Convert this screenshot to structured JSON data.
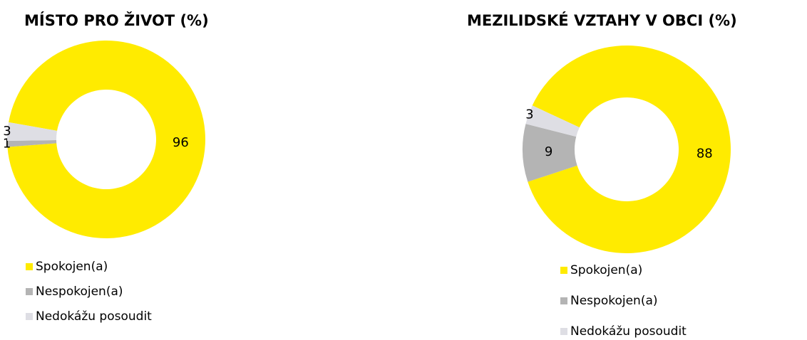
{
  "chart_data": [
    {
      "type": "donut",
      "title": "MÍSTO PRO ŽIVOT (%)",
      "categories": [
        "Spokojen(a)",
        "Nespokojen(a)",
        "Nedokážu posoudit"
      ],
      "values": [
        96,
        1,
        3
      ],
      "colors": [
        "#ffeb00",
        "#b4b4b4",
        "#dedee4"
      ]
    },
    {
      "type": "donut",
      "title": "MEZILIDSKÉ VZTAHY V OBCI (%)",
      "categories": [
        "Spokojen(a)",
        "Nespokojen(a)",
        "Nedokážu posoudit"
      ],
      "values": [
        88,
        9,
        3
      ],
      "colors": [
        "#ffeb00",
        "#b4b4b4",
        "#dedee4"
      ]
    }
  ]
}
